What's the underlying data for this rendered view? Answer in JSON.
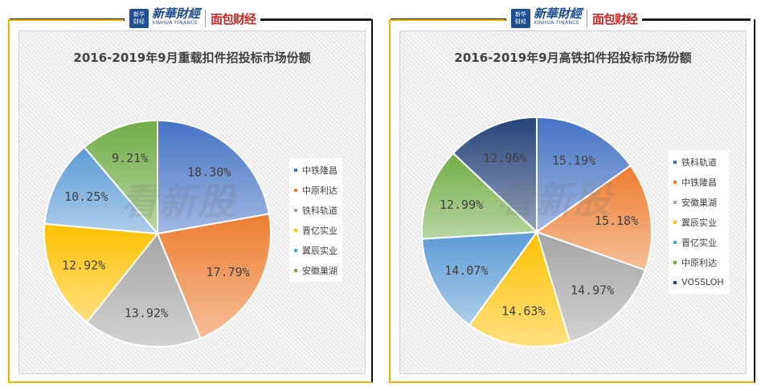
{
  "header": {
    "logo_icon_text_top": "新华",
    "logo_icon_text_bottom": "财经",
    "logo_cn": "新華財經",
    "logo_en": "XINHUA FINANCE",
    "brand": "面包财经"
  },
  "watermark": "看新股",
  "chart_data": [
    {
      "type": "pie",
      "title": "2016-2019年9月重载扣件招投标市场份额",
      "labels": [
        "中铁隆昌",
        "中原利达",
        "铁科轨道",
        "晋亿实业",
        "翼辰实业",
        "安徽巢湖"
      ],
      "values": [
        18.3,
        17.79,
        13.92,
        12.92,
        10.25,
        9.21
      ],
      "value_labels": [
        "18.30%",
        "17.79%",
        "13.92%",
        "12.92%",
        "10.25%",
        "9.21%"
      ],
      "colors": [
        "#4472c4",
        "#ed7d31",
        "#a5a5a5",
        "#ffc000",
        "#5b9bd5",
        "#70ad47"
      ],
      "legend": "right"
    },
    {
      "type": "pie",
      "title": "2016-2019年9月高铁扣件招投标市场份额",
      "labels": [
        "铁科轨道",
        "中铁隆昌",
        "安徽巢湖",
        "翼辰实业",
        "晋亿实业",
        "中原利达",
        "VOSSLOH"
      ],
      "values": [
        15.19,
        15.18,
        14.97,
        14.63,
        14.07,
        12.99,
        12.96
      ],
      "value_labels": [
        "15.19%",
        "15.18%",
        "14.97%",
        "14.63%",
        "14.07%",
        "12.99%",
        "12.96%"
      ],
      "colors": [
        "#4472c4",
        "#ed7d31",
        "#a5a5a5",
        "#ffc000",
        "#5b9bd5",
        "#70ad47",
        "#264478"
      ],
      "legend": "right"
    }
  ]
}
